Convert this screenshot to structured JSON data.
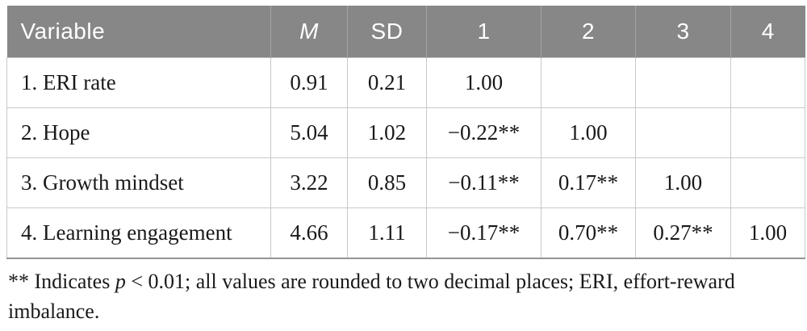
{
  "table": {
    "header": {
      "variable": "Variable",
      "m": "M",
      "sd": "SD",
      "c1": "1",
      "c2": "2",
      "c3": "3",
      "c4": "4"
    },
    "rows": [
      {
        "label": "1. ERI rate",
        "m": "0.91",
        "sd": "0.21",
        "c1": "1.00",
        "c2": "",
        "c3": "",
        "c4": ""
      },
      {
        "label": "2. Hope",
        "m": "5.04",
        "sd": "1.02",
        "c1": "−0.22**",
        "c2": "1.00",
        "c3": "",
        "c4": ""
      },
      {
        "label": "3. Growth mindset",
        "m": "3.22",
        "sd": "0.85",
        "c1": "−0.11**",
        "c2": "0.17**",
        "c3": "1.00",
        "c4": ""
      },
      {
        "label": "4. Learning engagement",
        "m": "4.66",
        "sd": "1.11",
        "c1": "−0.17**",
        "c2": "0.70**",
        "c3": "0.27**",
        "c4": "1.00"
      }
    ],
    "footnote": {
      "marker": "**",
      "text_before_p": " Indicates ",
      "p": "p",
      "text_line1": " < 0.01; all values are rounded to two decimal places; ERI, effort-reward",
      "text_line2": "imbalance."
    }
  },
  "colors": {
    "header_bg": "#878787",
    "header_text": "#ffffff",
    "header_divider": "#a5a5a5",
    "grid_line": "#c9c9c9",
    "bottom_border": "#949494",
    "body_text": "#1a1a1a"
  }
}
